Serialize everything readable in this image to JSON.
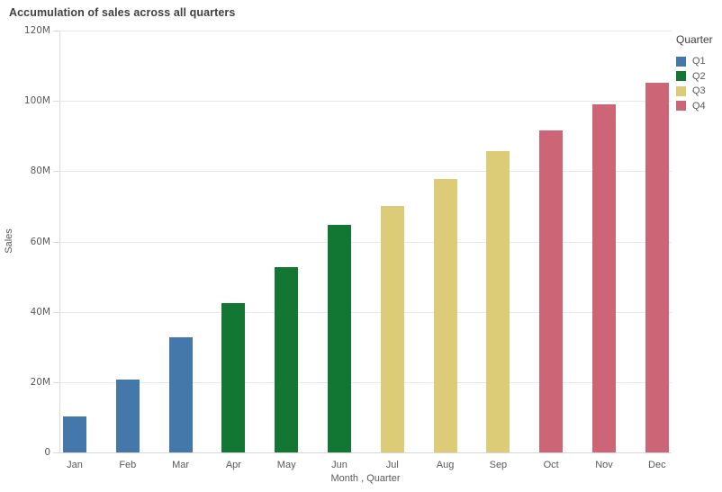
{
  "chart_data": {
    "type": "bar",
    "title": "Accumulation of sales across all quarters",
    "xlabel": "Month , Quarter",
    "ylabel": "Sales",
    "ylim_millions": [
      0,
      120
    ],
    "grid": true,
    "y_ticks": [
      {
        "value_millions": 0,
        "label": "0"
      },
      {
        "value_millions": 20,
        "label": "20M"
      },
      {
        "value_millions": 40,
        "label": "40M"
      },
      {
        "value_millions": 60,
        "label": "60M"
      },
      {
        "value_millions": 80,
        "label": "80M"
      },
      {
        "value_millions": 100,
        "label": "100M"
      },
      {
        "value_millions": 120,
        "label": "120M"
      }
    ],
    "categories": [
      "Jan",
      "Feb",
      "Mar",
      "Apr",
      "May",
      "Jun",
      "Jul",
      "Aug",
      "Sep",
      "Oct",
      "Nov",
      "Dec"
    ],
    "values_millions": [
      10.2,
      20.7,
      32.7,
      42.4,
      52.8,
      64.8,
      70.2,
      77.9,
      85.7,
      91.7,
      98.9,
      105.2
    ],
    "bar_quarters": [
      "Q1",
      "Q1",
      "Q1",
      "Q2",
      "Q2",
      "Q2",
      "Q3",
      "Q3",
      "Q3",
      "Q4",
      "Q4",
      "Q4"
    ],
    "quarter_colors": {
      "Q1": "#4477aa",
      "Q2": "#117733",
      "Q3": "#ddcc77",
      "Q4": "#cc6677"
    },
    "legend": {
      "title": "Quarter",
      "position": "top-right",
      "items": [
        {
          "label": "Q1",
          "color": "#4477aa"
        },
        {
          "label": "Q2",
          "color": "#117733"
        },
        {
          "label": "Q3",
          "color": "#ddcc77"
        },
        {
          "label": "Q4",
          "color": "#cc6677"
        }
      ]
    }
  },
  "colors": {
    "background": "#ffffff",
    "grid": "#e8e8e8",
    "axis": "#d9d9d9",
    "tick_text": "#595959",
    "title_text": "#404040"
  }
}
